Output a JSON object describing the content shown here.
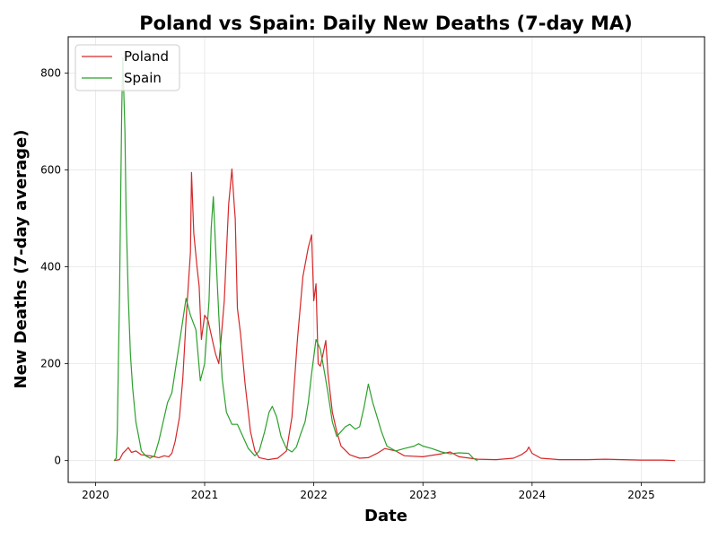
{
  "chart_data": {
    "type": "line",
    "title": "Poland vs Spain: Daily New Deaths (7-day MA)",
    "xlabel": "Date",
    "ylabel": "New Deaths (7-day average)",
    "x_ticks": [
      "2020",
      "2021",
      "2022",
      "2023",
      "2024",
      "2025"
    ],
    "y_ticks": [
      0,
      200,
      400,
      600,
      800
    ],
    "xlim": [
      2019.75,
      2025.58
    ],
    "ylim": [
      -45,
      875
    ],
    "grid": true,
    "legend_position": "top-left",
    "series": [
      {
        "name": "Poland",
        "color": "#d62728",
        "points": [
          [
            2020.17,
            0
          ],
          [
            2020.22,
            2
          ],
          [
            2020.25,
            15
          ],
          [
            2020.28,
            22
          ],
          [
            2020.3,
            27
          ],
          [
            2020.33,
            17
          ],
          [
            2020.37,
            20
          ],
          [
            2020.42,
            12
          ],
          [
            2020.5,
            10
          ],
          [
            2020.58,
            6
          ],
          [
            2020.63,
            10
          ],
          [
            2020.67,
            8
          ],
          [
            2020.7,
            15
          ],
          [
            2020.73,
            40
          ],
          [
            2020.77,
            90
          ],
          [
            2020.8,
            170
          ],
          [
            2020.83,
            290
          ],
          [
            2020.87,
            430
          ],
          [
            2020.88,
            595
          ],
          [
            2020.9,
            470
          ],
          [
            2020.93,
            400
          ],
          [
            2020.95,
            360
          ],
          [
            2020.97,
            250
          ],
          [
            2021.0,
            300
          ],
          [
            2021.03,
            290
          ],
          [
            2021.05,
            270
          ],
          [
            2021.08,
            240
          ],
          [
            2021.1,
            220
          ],
          [
            2021.13,
            200
          ],
          [
            2021.15,
            250
          ],
          [
            2021.18,
            330
          ],
          [
            2021.2,
            430
          ],
          [
            2021.22,
            530
          ],
          [
            2021.25,
            602
          ],
          [
            2021.27,
            530
          ],
          [
            2021.28,
            500
          ],
          [
            2021.3,
            315
          ],
          [
            2021.33,
            260
          ],
          [
            2021.37,
            160
          ],
          [
            2021.42,
            60
          ],
          [
            2021.46,
            20
          ],
          [
            2021.5,
            6
          ],
          [
            2021.58,
            2
          ],
          [
            2021.67,
            5
          ],
          [
            2021.75,
            20
          ],
          [
            2021.8,
            90
          ],
          [
            2021.85,
            250
          ],
          [
            2021.9,
            380
          ],
          [
            2021.95,
            440
          ],
          [
            2021.98,
            466
          ],
          [
            2022.0,
            330
          ],
          [
            2022.02,
            365
          ],
          [
            2022.04,
            200
          ],
          [
            2022.06,
            195
          ],
          [
            2022.08,
            215
          ],
          [
            2022.11,
            248
          ],
          [
            2022.13,
            180
          ],
          [
            2022.17,
            100
          ],
          [
            2022.21,
            60
          ],
          [
            2022.25,
            30
          ],
          [
            2022.33,
            12
          ],
          [
            2022.42,
            5
          ],
          [
            2022.5,
            6
          ],
          [
            2022.58,
            15
          ],
          [
            2022.65,
            25
          ],
          [
            2022.75,
            20
          ],
          [
            2022.83,
            10
          ],
          [
            2023.0,
            8
          ],
          [
            2023.17,
            14
          ],
          [
            2023.25,
            18
          ],
          [
            2023.33,
            8
          ],
          [
            2023.5,
            3
          ],
          [
            2023.67,
            2
          ],
          [
            2023.83,
            5
          ],
          [
            2023.9,
            12
          ],
          [
            2023.95,
            20
          ],
          [
            2023.97,
            28
          ],
          [
            2024.0,
            15
          ],
          [
            2024.08,
            5
          ],
          [
            2024.25,
            2
          ],
          [
            2024.5,
            2
          ],
          [
            2024.67,
            3
          ],
          [
            2024.83,
            2
          ],
          [
            2025.0,
            1
          ],
          [
            2025.2,
            1
          ],
          [
            2025.31,
            0
          ]
        ]
      },
      {
        "name": "Spain",
        "color": "#2ca02c",
        "points": [
          [
            2020.17,
            0
          ],
          [
            2020.19,
            5
          ],
          [
            2020.2,
            60
          ],
          [
            2020.21,
            200
          ],
          [
            2020.22,
            345
          ],
          [
            2020.24,
            720
          ],
          [
            2020.25,
            832
          ],
          [
            2020.27,
            680
          ],
          [
            2020.28,
            510
          ],
          [
            2020.3,
            340
          ],
          [
            2020.32,
            220
          ],
          [
            2020.34,
            150
          ],
          [
            2020.37,
            80
          ],
          [
            2020.4,
            45
          ],
          [
            2020.42,
            20
          ],
          [
            2020.46,
            10
          ],
          [
            2020.5,
            5
          ],
          [
            2020.54,
            10
          ],
          [
            2020.58,
            40
          ],
          [
            2020.62,
            80
          ],
          [
            2020.66,
            120
          ],
          [
            2020.7,
            140
          ],
          [
            2020.74,
            200
          ],
          [
            2020.78,
            260
          ],
          [
            2020.83,
            335
          ],
          [
            2020.87,
            300
          ],
          [
            2020.92,
            270
          ],
          [
            2020.96,
            165
          ],
          [
            2021.0,
            200
          ],
          [
            2021.04,
            330
          ],
          [
            2021.06,
            480
          ],
          [
            2021.08,
            545
          ],
          [
            2021.1,
            440
          ],
          [
            2021.13,
            300
          ],
          [
            2021.16,
            170
          ],
          [
            2021.2,
            100
          ],
          [
            2021.25,
            75
          ],
          [
            2021.3,
            75
          ],
          [
            2021.35,
            50
          ],
          [
            2021.4,
            25
          ],
          [
            2021.46,
            10
          ],
          [
            2021.5,
            20
          ],
          [
            2021.55,
            60
          ],
          [
            2021.59,
            100
          ],
          [
            2021.62,
            112
          ],
          [
            2021.66,
            90
          ],
          [
            2021.7,
            50
          ],
          [
            2021.75,
            25
          ],
          [
            2021.8,
            18
          ],
          [
            2021.84,
            28
          ],
          [
            2021.88,
            55
          ],
          [
            2021.92,
            80
          ],
          [
            2021.95,
            120
          ],
          [
            2021.98,
            180
          ],
          [
            2022.02,
            250
          ],
          [
            2022.06,
            230
          ],
          [
            2022.1,
            180
          ],
          [
            2022.13,
            140
          ],
          [
            2022.17,
            80
          ],
          [
            2022.21,
            50
          ],
          [
            2022.25,
            60
          ],
          [
            2022.29,
            70
          ],
          [
            2022.33,
            75
          ],
          [
            2022.38,
            65
          ],
          [
            2022.42,
            70
          ],
          [
            2022.46,
            110
          ],
          [
            2022.5,
            158
          ],
          [
            2022.54,
            120
          ],
          [
            2022.58,
            90
          ],
          [
            2022.62,
            60
          ],
          [
            2022.67,
            30
          ],
          [
            2022.75,
            20
          ],
          [
            2022.83,
            25
          ],
          [
            2022.92,
            30
          ],
          [
            2022.96,
            35
          ],
          [
            2023.0,
            30
          ],
          [
            2023.08,
            25
          ],
          [
            2023.17,
            18
          ],
          [
            2023.25,
            14
          ],
          [
            2023.33,
            16
          ],
          [
            2023.42,
            15
          ],
          [
            2023.46,
            5
          ],
          [
            2023.5,
            0
          ]
        ]
      }
    ]
  }
}
